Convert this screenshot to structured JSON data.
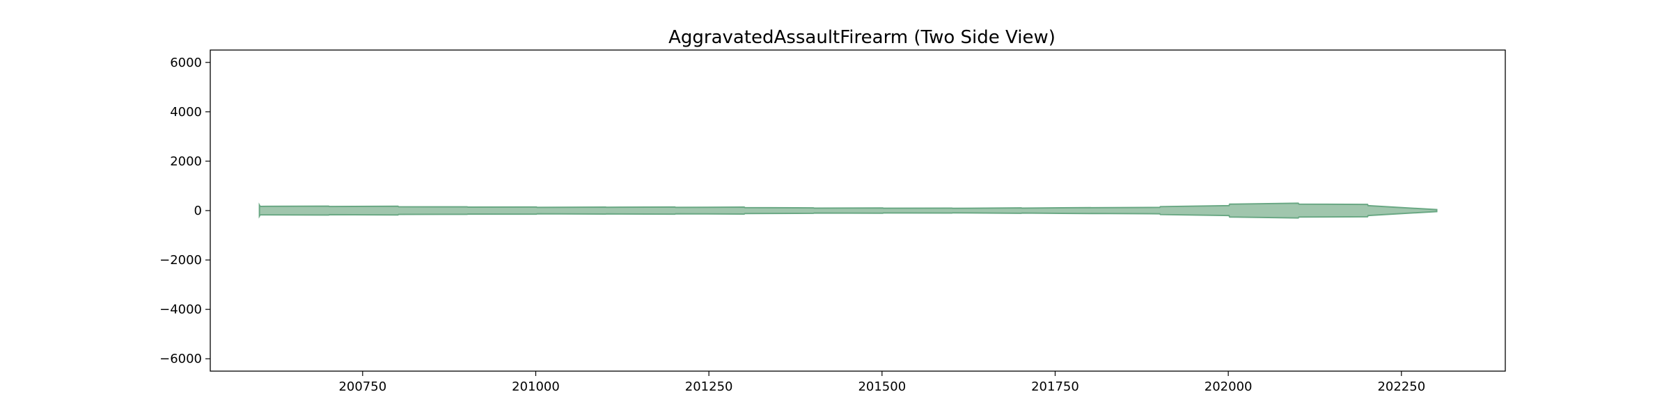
{
  "chart_data": {
    "type": "area",
    "title": "AggravatedAssaultFirearm (Two Side View)",
    "xlabel": "",
    "ylabel": "",
    "xlim": [
      200530,
      202400
    ],
    "ylim": [
      -6500,
      6500
    ],
    "x_ticks": [
      200750,
      201000,
      201250,
      201500,
      201750,
      202000,
      202250
    ],
    "x_tick_labels": [
      "200750",
      "201000",
      "201250",
      "201500",
      "201750",
      "202000",
      "202250"
    ],
    "y_ticks": [
      6000,
      4000,
      2000,
      0,
      -2000,
      -4000,
      -6000
    ],
    "y_tick_labels": [
      "6000",
      "4000",
      "2000",
      "0",
      "−2000",
      "−4000",
      "−6000"
    ],
    "grid": false,
    "legend": "none",
    "series_color": "#8fbc9f",
    "series_edge_color": "#6aa884",
    "series": [
      {
        "x": [
          200601,
          200602,
          200701,
          200702,
          200801,
          200802,
          200901,
          200902,
          201001,
          201002,
          201101,
          201102,
          201201,
          201202,
          201301,
          201302,
          201401,
          201402,
          201501,
          201502,
          201601,
          201602,
          201701,
          201702,
          201801,
          201802,
          201901,
          201902,
          202001,
          202002,
          202101,
          202102,
          202201,
          202202,
          202301
        ],
        "values": [
          220,
          170,
          180,
          165,
          175,
          155,
          150,
          140,
          145,
          130,
          140,
          135,
          145,
          130,
          140,
          120,
          110,
          100,
          105,
          95,
          100,
          90,
          110,
          100,
          120,
          115,
          130,
          160,
          200,
          260,
          300,
          260,
          250,
          200,
          40
        ]
      }
    ]
  }
}
